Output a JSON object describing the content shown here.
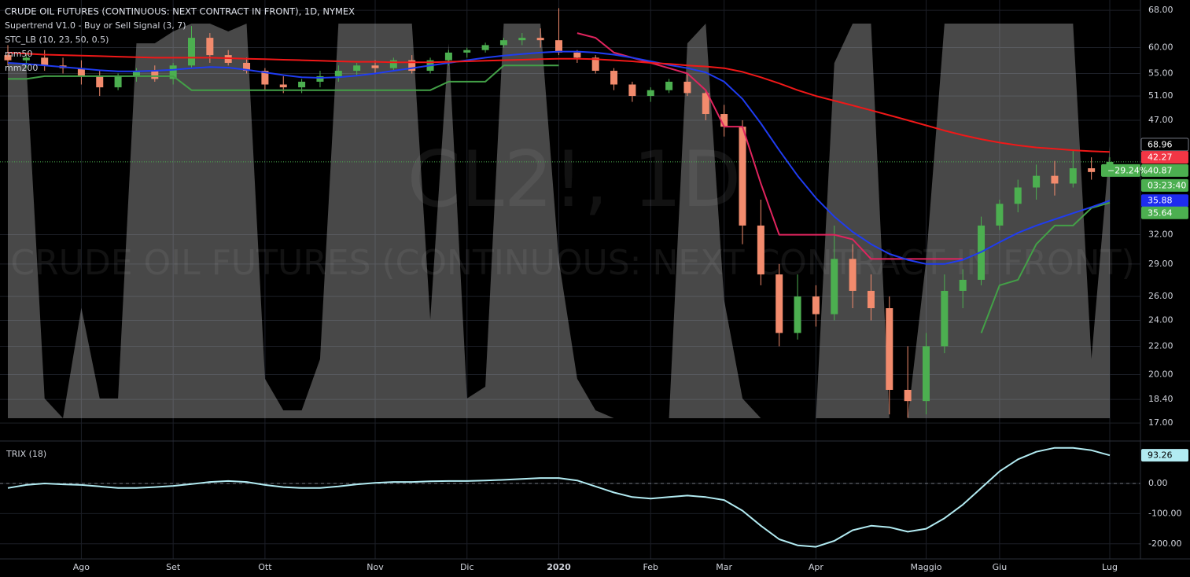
{
  "chart_data": {
    "type": "candlestick",
    "title": "CRUDE OIL FUTURES (CONTINUOUS: NEXT CONTRACT IN FRONT), 1D, NYMEX",
    "watermark_symbol": "CL2!, 1D",
    "watermark_description": "CRUDE OIL FUTURES (CONTINUOUS: NEXT CONTRACT IN FRONT)",
    "log_scale": true,
    "grid": true,
    "categories": [
      null,
      null,
      null,
      null,
      "Ago",
      null,
      null,
      null,
      null,
      "Set",
      null,
      null,
      null,
      null,
      "Ott",
      null,
      null,
      null,
      null,
      null,
      "Nov",
      null,
      null,
      null,
      null,
      "Dic",
      null,
      null,
      null,
      null,
      "2020",
      null,
      null,
      null,
      null,
      "Feb",
      null,
      null,
      null,
      "Mar",
      null,
      null,
      null,
      null,
      "Apr",
      null,
      null,
      null,
      null,
      null,
      "Maggio",
      null,
      null,
      null,
      "Giu",
      null,
      null,
      null,
      null,
      null,
      "Lug"
    ],
    "open": [
      58.5,
      57.5,
      58,
      56.5,
      56,
      54.5,
      52.5,
      54.5,
      55.5,
      54,
      56.5,
      62,
      58.5,
      57,
      55.5,
      53,
      52.5,
      53.5,
      54.5,
      55.5,
      56.5,
      56,
      57.5,
      55.5,
      57.5,
      59,
      59.5,
      60.5,
      61.5,
      62,
      61.5,
      59,
      58,
      55.5,
      53,
      51,
      52,
      53.5,
      51.5,
      48,
      46,
      33,
      28,
      23,
      26,
      24.5,
      29.5,
      26.5,
      25,
      19,
      18.3,
      22,
      26.5,
      27.5,
      33,
      35.5,
      37.5,
      39,
      38,
      40,
      39.5
    ],
    "high": [
      60.5,
      59,
      59.5,
      58,
      57.5,
      55.5,
      55,
      56,
      56.5,
      57,
      64.5,
      63,
      59.5,
      58,
      56,
      54.5,
      54,
      55.5,
      56.5,
      57,
      57.5,
      58,
      58.5,
      58,
      59.5,
      60,
      61,
      62,
      63,
      64,
      68.5,
      59.5,
      58.5,
      56,
      53.5,
      52.5,
      54,
      55,
      52,
      49.5,
      47,
      36,
      29,
      28,
      27,
      33,
      31,
      28,
      26,
      22,
      23,
      28,
      28.5,
      34,
      36,
      38.5,
      40.5,
      41,
      42.5,
      41.5,
      41.5
    ],
    "low": [
      56.5,
      56,
      55.5,
      55,
      53,
      51,
      52,
      53.5,
      53.5,
      53,
      56,
      57,
      56.5,
      55,
      52,
      51.5,
      51.5,
      52.5,
      53.5,
      54.5,
      55,
      55.5,
      55,
      55,
      56.5,
      58,
      59,
      60,
      60.5,
      60,
      58.5,
      57,
      55,
      52,
      50,
      50,
      51.5,
      51,
      47,
      44.5,
      31,
      27,
      22,
      22.5,
      23.5,
      24,
      25,
      24,
      17.5,
      17.3,
      17.5,
      21.5,
      25,
      27,
      32.5,
      34.5,
      36,
      36.5,
      37.5,
      38.5,
      39
    ],
    "close": [
      57.5,
      58,
      56.5,
      56,
      54.5,
      52.5,
      54.5,
      55.5,
      54,
      56.5,
      62,
      58.5,
      57,
      55.5,
      53,
      52.5,
      53.5,
      54.5,
      55.5,
      56.5,
      56,
      57.5,
      55.5,
      57.5,
      59,
      59.5,
      60.5,
      61.5,
      62,
      61.5,
      59,
      58,
      55.5,
      53,
      51,
      52,
      53.5,
      51.5,
      48,
      46,
      33,
      28,
      23,
      26,
      24.5,
      29.5,
      26.5,
      25,
      19,
      18.3,
      22,
      26.5,
      27.5,
      33,
      35.5,
      37.5,
      39,
      38,
      40,
      39.5,
      40.87
    ],
    "up_color": "#4caf50",
    "down_color": "#f28b6d",
    "change_label": "−29.24%",
    "countdown": "03:23:40",
    "ylim": [
      16.56,
      70.4
    ],
    "yticks": [
      {
        "value": 68,
        "label": "68.00"
      },
      {
        "value": 60,
        "label": "60.00"
      },
      {
        "value": 55,
        "label": "55.00"
      },
      {
        "value": 51,
        "label": "51.00"
      },
      {
        "value": 47,
        "label": "47.00"
      },
      {
        "value": 32,
        "label": "32.00"
      },
      {
        "value": 29,
        "label": "29.00"
      },
      {
        "value": 26,
        "label": "26.00"
      },
      {
        "value": 24,
        "label": "24.00"
      },
      {
        "value": 22,
        "label": "22.00"
      },
      {
        "value": 20,
        "label": "20.00"
      },
      {
        "value": 18.4,
        "label": "18.40"
      },
      {
        "value": 17,
        "label": "17.00"
      }
    ],
    "supertrend": {
      "name": "Supertrend V1.0 - Buy or Sell Signal (3, 7)",
      "up_color": "#43a047",
      "down_color": "#e0245e",
      "up": [
        54,
        54,
        54.5,
        54.5,
        54.5,
        54.5,
        54.5,
        54.5,
        54.5,
        54.5,
        52,
        52,
        52,
        52,
        52,
        52,
        52,
        52,
        52,
        52,
        52,
        52,
        52,
        52,
        53.5,
        53.5,
        53.5,
        56.5,
        56.5,
        56.5,
        56.5,
        null,
        null,
        null,
        null,
        null,
        null,
        null,
        null,
        null,
        null,
        null,
        null,
        null,
        null,
        null,
        null,
        null,
        null,
        null,
        null,
        null,
        null,
        23,
        27,
        27.5,
        31,
        33,
        33,
        35,
        35.64
      ],
      "down": [
        null,
        null,
        null,
        null,
        null,
        null,
        null,
        null,
        null,
        null,
        null,
        null,
        null,
        null,
        null,
        null,
        null,
        null,
        null,
        null,
        null,
        null,
        null,
        null,
        null,
        null,
        null,
        null,
        null,
        null,
        null,
        63,
        62,
        59,
        58,
        57,
        56,
        55,
        52,
        46,
        46,
        38,
        32,
        32,
        32,
        32,
        31.5,
        29.5,
        29.5,
        29.5,
        29.5,
        29.5,
        29.5,
        null,
        null,
        null,
        null,
        null,
        null,
        null,
        null
      ]
    },
    "stc": {
      "name": "STC_LB (10, 23, 50, 0.5)",
      "color": "rgba(200,200,200,0.36)",
      "ylim": [
        0,
        100
      ],
      "values": [
        90,
        90,
        5,
        0,
        28,
        5,
        5,
        95,
        95,
        98,
        100,
        100,
        98,
        100,
        10,
        2,
        2,
        15,
        100,
        100,
        100,
        100,
        100,
        25,
        95,
        5,
        8,
        100,
        100,
        100,
        40,
        10,
        2,
        0,
        0,
        0,
        0,
        95,
        100,
        30,
        5,
        0,
        0,
        0,
        0,
        90,
        100,
        100,
        0,
        0,
        40,
        100,
        100,
        100,
        100,
        100,
        100,
        100,
        100,
        15,
        68.96
      ]
    },
    "lines": [
      {
        "name": "mm50",
        "color": "#1f3cf0",
        "values": [
          57,
          56.8,
          56.5,
          56.2,
          55.9,
          55.6,
          55.4,
          55.4,
          55.5,
          55.7,
          56,
          56.2,
          56.1,
          55.7,
          55.2,
          54.7,
          54.3,
          54.2,
          54.3,
          54.6,
          55,
          55.5,
          56,
          56.5,
          57,
          57.5,
          58,
          58.4,
          58.7,
          59,
          59.2,
          59.2,
          59,
          58.6,
          58,
          57.3,
          56.6,
          56,
          55.2,
          53.5,
          50.5,
          46.5,
          42.5,
          39,
          36.2,
          34,
          32.3,
          31,
          30,
          29.4,
          29,
          29,
          29.4,
          30.2,
          31.2,
          32.2,
          33,
          33.7,
          34.4,
          35.1,
          35.88
        ]
      },
      {
        "name": "mm200",
        "color": "#f01818",
        "values": [
          59,
          58.8,
          58.6,
          58.5,
          58.4,
          58.3,
          58.2,
          58.1,
          58,
          58,
          58,
          58,
          57.9,
          57.8,
          57.7,
          57.6,
          57.5,
          57.4,
          57.3,
          57.2,
          57.2,
          57.1,
          57.1,
          57.1,
          57.2,
          57.3,
          57.4,
          57.5,
          57.6,
          57.7,
          57.8,
          57.8,
          57.7,
          57.5,
          57.3,
          57,
          56.8,
          56.5,
          56.3,
          56,
          55.3,
          54.3,
          53.2,
          52,
          51,
          50.2,
          49.4,
          48.6,
          47.8,
          47,
          46.2,
          45.4,
          44.7,
          44.1,
          43.6,
          43.2,
          42.9,
          42.7,
          42.5,
          42.35,
          42.27
        ]
      }
    ],
    "trix": {
      "name": "TRIX (18)",
      "color": "#b2ebf2",
      "ylim": [
        -250,
        138
      ],
      "yticks": [
        {
          "value": 0,
          "label": "0.00"
        },
        {
          "value": -100,
          "label": "-100.00"
        },
        {
          "value": -200,
          "label": "-200.00"
        }
      ],
      "values": [
        -15,
        -5,
        0,
        -3,
        -5,
        -10,
        -15,
        -15,
        -12,
        -8,
        -2,
        5,
        8,
        5,
        -5,
        -12,
        -15,
        -15,
        -10,
        -3,
        2,
        5,
        5,
        7,
        8,
        8,
        10,
        12,
        15,
        18,
        18,
        10,
        -10,
        -30,
        -45,
        -50,
        -45,
        -40,
        -45,
        -55,
        -90,
        -140,
        -185,
        -205,
        -210,
        -190,
        -155,
        -140,
        -145,
        -160,
        -150,
        -115,
        -70,
        -15,
        40,
        80,
        105,
        118,
        118,
        110,
        93.26
      ]
    }
  }
}
